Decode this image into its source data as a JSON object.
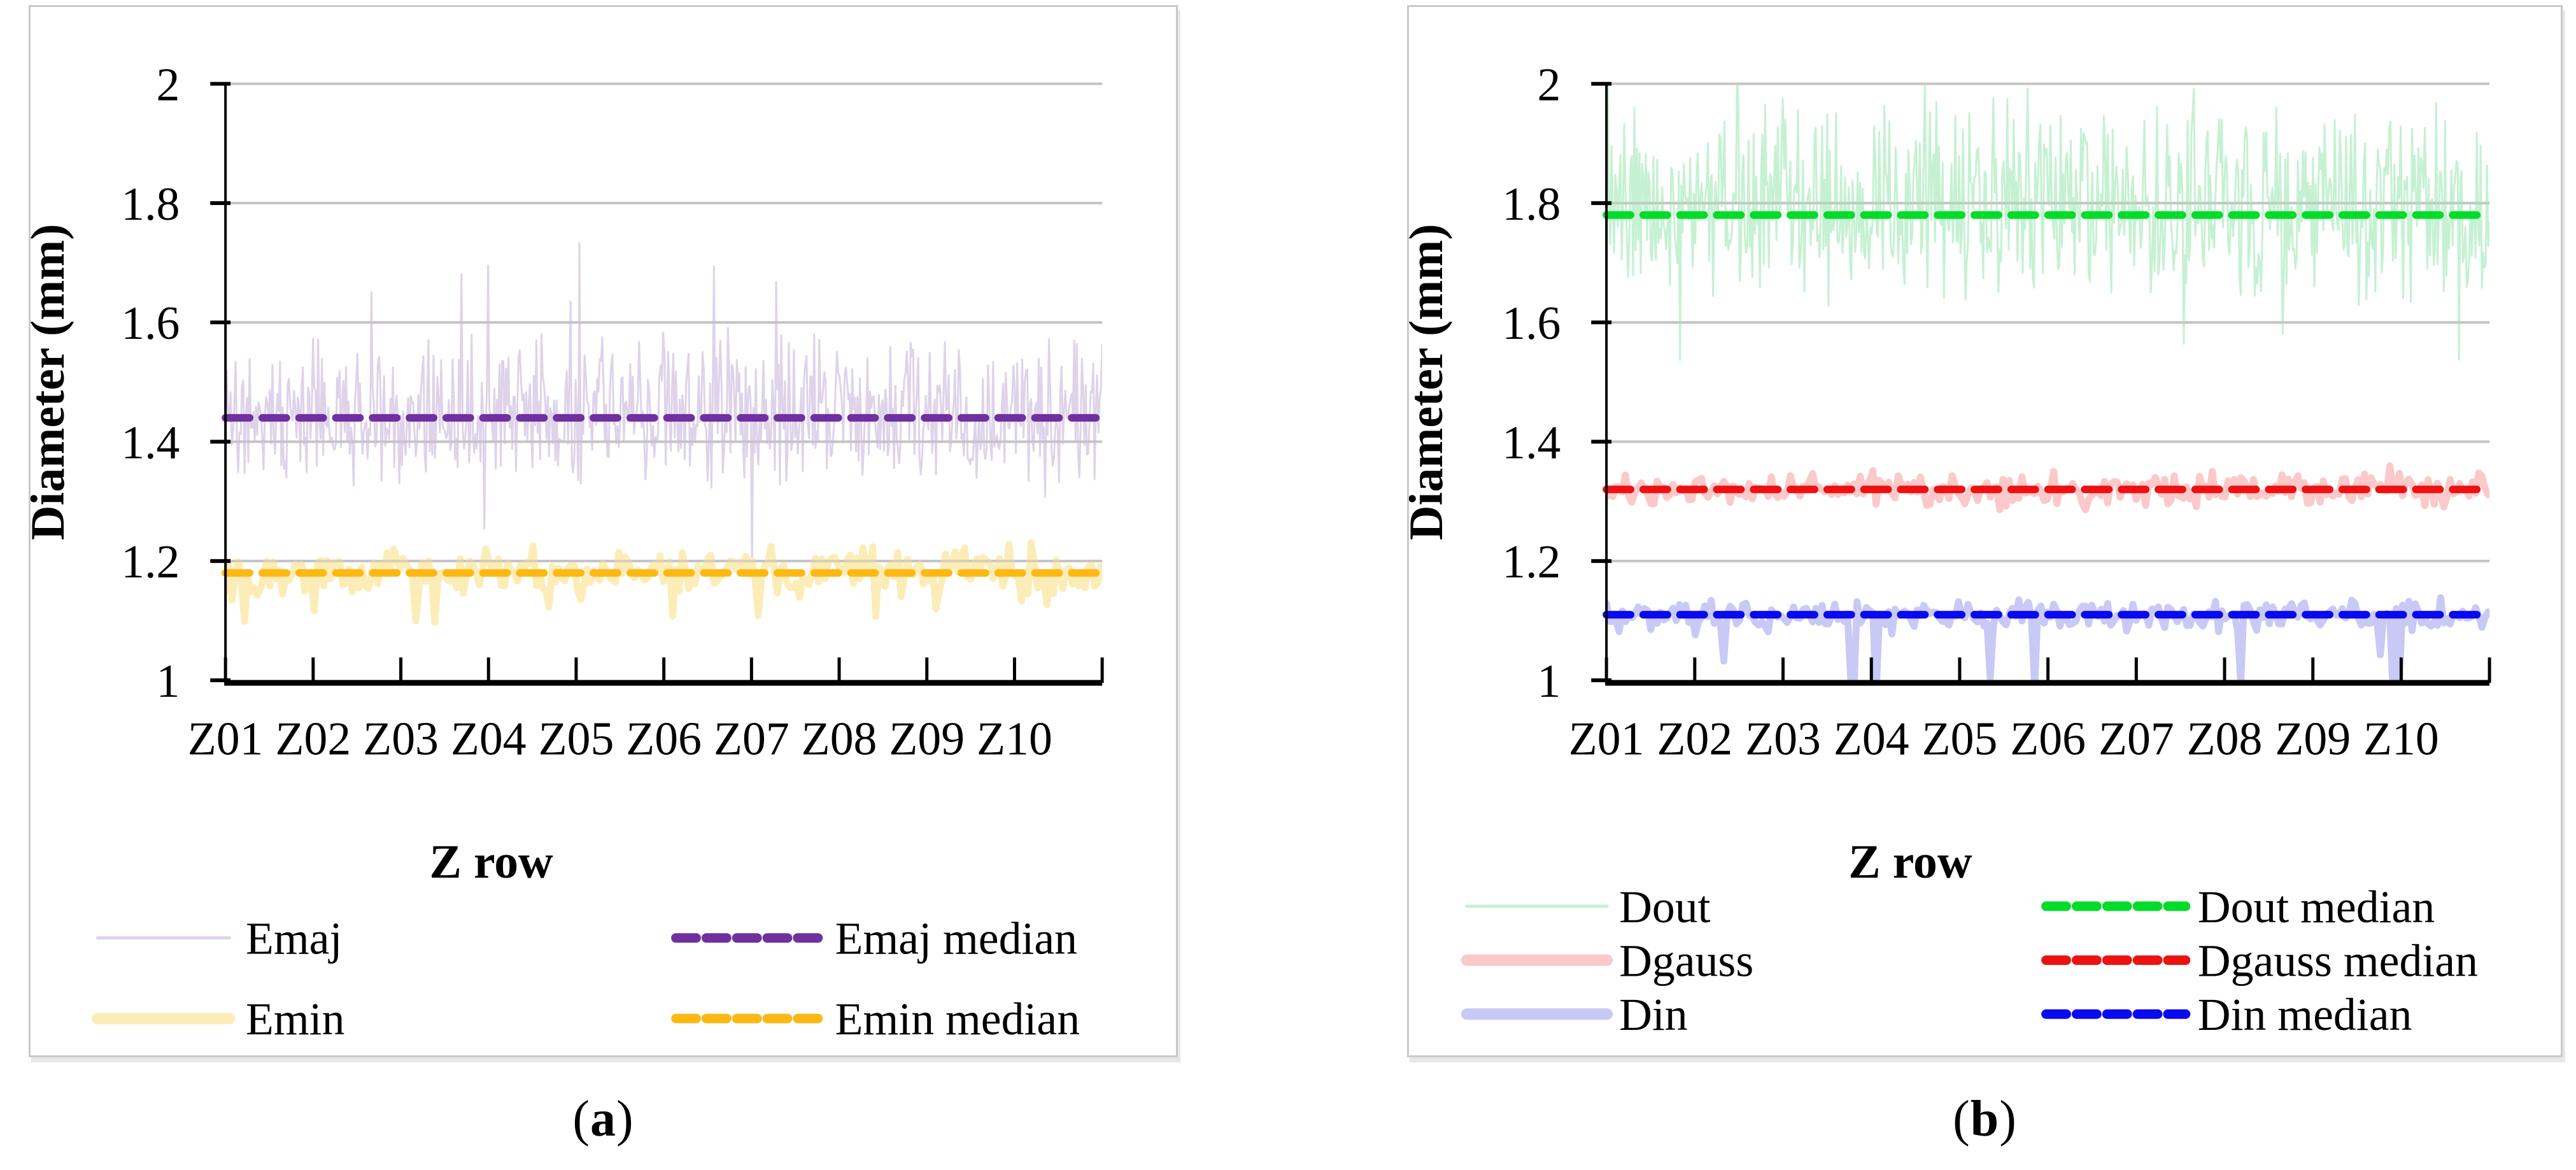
{
  "ui": {
    "captions": [
      {
        "open": "(",
        "letter": "a",
        "close": ")"
      },
      {
        "open": "(",
        "letter": "b",
        "close": ")"
      }
    ]
  },
  "styles": {
    "panel_border": "#C9C9C9",
    "gridline": "#D9D9D9",
    "gridline_overlay": "rgba(170,170,170,0.45)",
    "axis_color": "#000000",
    "text_color": "#000000"
  },
  "chart_data": [
    {
      "type": "line",
      "panel": "a",
      "title": "",
      "xlabel": "Z row",
      "ylabel": "Diameter (mm)",
      "ylim": [
        1,
        2
      ],
      "yticks": [
        2,
        1.8,
        1.6,
        1.4,
        1.2,
        1
      ],
      "ytick_labels": [
        "2",
        "1.8",
        "1.6",
        "1.4",
        "1.2",
        "1"
      ],
      "categories": [
        "Z01",
        "Z02",
        "Z03",
        "Z04",
        "Z05",
        "Z06",
        "Z07",
        "Z08",
        "Z09",
        "Z10"
      ],
      "grid": true,
      "legend_position": "bottom",
      "series": [
        {
          "name": "Emaj",
          "kind": "noisy",
          "median": 1.44,
          "approx_range": [
            1.33,
            1.62
          ],
          "spike_range": [
            1.22,
            1.77
          ],
          "color": "#DED3EA",
          "render": {
            "style": "hair",
            "step": 2,
            "amp_up": 0.14,
            "amp_dn": 0.11,
            "spike_prob": 0.022,
            "spike_min": 0.1,
            "spike_max": 0.3,
            "down_bias": 0.35,
            "stroke": 3,
            "seed": 11
          }
        },
        {
          "name": "Emin",
          "kind": "noisy",
          "median": 1.18,
          "approx_range": [
            1.1,
            1.26
          ],
          "spike_range": [
            1.05,
            1.3
          ],
          "color": "#FCEDB8",
          "render": {
            "style": "band",
            "step": 5,
            "amp_up": 0.055,
            "amp_dn": 0.055,
            "spike_prob": 0.03,
            "spike_min": 0.05,
            "spike_max": 0.1,
            "down_bias": 0.6,
            "stroke": 11,
            "seed": 22
          }
        },
        {
          "name": "Emaj median",
          "kind": "median",
          "value": 1.44,
          "color": "#7030A0",
          "render": {
            "stroke": 12,
            "dash": "38 20"
          }
        },
        {
          "name": "Emin median",
          "kind": "median",
          "value": 1.18,
          "color": "#FCB813",
          "render": {
            "stroke": 12,
            "dash": "38 20"
          }
        }
      ]
    },
    {
      "type": "line",
      "panel": "b",
      "title": "",
      "xlabel": "Z row",
      "ylabel": "Diameter (mm)",
      "ylim": [
        1,
        2
      ],
      "yticks": [
        2,
        1.8,
        1.6,
        1.4,
        1.2,
        1
      ],
      "ytick_labels": [
        "2",
        "1.8",
        "1.6",
        "1.4",
        "1.2",
        "1"
      ],
      "categories": [
        "Z01",
        "Z02",
        "Z03",
        "Z04",
        "Z05",
        "Z06",
        "Z07",
        "Z08",
        "Z09",
        "Z10"
      ],
      "grid": true,
      "legend_position": "bottom",
      "series": [
        {
          "name": "Dout",
          "kind": "noisy",
          "median": 1.78,
          "approx_range": [
            1.62,
            2.0
          ],
          "spike_range": [
            1.58,
            2.0
          ],
          "color": "#C5F1D2",
          "render": {
            "style": "hair",
            "step": 2,
            "amp_up": 0.18,
            "amp_dn": 0.14,
            "spike_prob": 0.05,
            "spike_min": 0.08,
            "spike_max": 0.26,
            "down_bias": 0.3,
            "stroke": 3,
            "seed": 33
          }
        },
        {
          "name": "Dgauss",
          "kind": "noisy",
          "median": 1.32,
          "approx_range": [
            1.27,
            1.39
          ],
          "spike_range": [
            1.25,
            1.4
          ],
          "color": "#FBC9C9",
          "render": {
            "style": "band",
            "step": 5,
            "amp_up": 0.04,
            "amp_dn": 0.04,
            "spike_prob": 0.02,
            "spike_min": 0.02,
            "spike_max": 0.05,
            "down_bias": 0.55,
            "stroke": 11,
            "seed": 44
          }
        },
        {
          "name": "Din",
          "kind": "noisy",
          "median": 1.11,
          "approx_range": [
            1.04,
            1.17
          ],
          "spike_range": [
            1.0,
            1.18
          ],
          "color": "#C9C9F6",
          "render": {
            "style": "band",
            "step": 5,
            "amp_up": 0.034,
            "amp_dn": 0.038,
            "spike_prob": 0.035,
            "spike_min": 0.05,
            "spike_max": 0.14,
            "down_bias": 0.97,
            "stroke": 11,
            "seed": 55
          }
        },
        {
          "name": "Dout median",
          "kind": "median",
          "value": 1.78,
          "color": "#00DC28",
          "render": {
            "stroke": 12,
            "dash": "38 20"
          }
        },
        {
          "name": "Dgauss median",
          "kind": "median",
          "value": 1.32,
          "color": "#EE1111",
          "render": {
            "stroke": 12,
            "dash": "38 20"
          }
        },
        {
          "name": "Din median",
          "kind": "median",
          "value": 1.11,
          "color": "#0A0AF0",
          "render": {
            "stroke": 12,
            "dash": "38 20"
          }
        }
      ]
    }
  ]
}
